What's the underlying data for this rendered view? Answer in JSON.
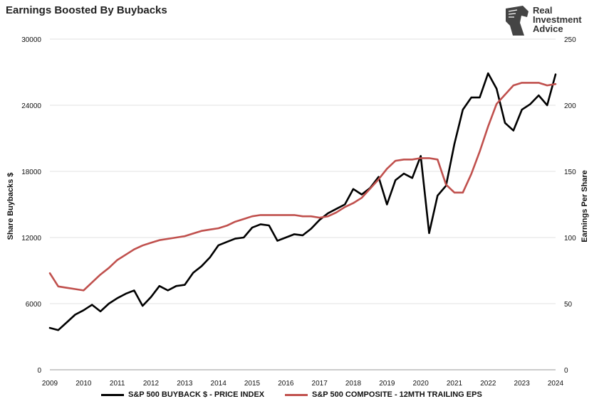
{
  "title": "Earnings Boosted By Buybacks",
  "logo": {
    "line1": "Real",
    "line2": "Investment",
    "line3": "Advice",
    "icon": "horse-head-icon"
  },
  "legend": [
    {
      "label": "S&P 500 BUYBACK $ - PRICE INDEX",
      "color": "#000000"
    },
    {
      "label": "S&P 500 COMPOSITE - 12MTH TRAILING EPS",
      "color": "#c0504d"
    }
  ],
  "chart_data": {
    "type": "line",
    "title": "Earnings Boosted By Buybacks",
    "xlabel": "",
    "ylabel_left": "Share Buybacks $",
    "ylabel_right": "Earnings Per Share",
    "xlim": [
      2009,
      2024
    ],
    "ylim_left": [
      0,
      30000
    ],
    "ylim_right": [
      0,
      250
    ],
    "x_ticks": [
      "2009",
      "2010",
      "2011",
      "2012",
      "2013",
      "2014",
      "2015",
      "2016",
      "2017",
      "2018",
      "2019",
      "2020",
      "2021",
      "2022",
      "2023",
      "2024"
    ],
    "y_ticks_left": [
      "0",
      "6000",
      "12000",
      "18000",
      "24000",
      "30000"
    ],
    "y_ticks_right": [
      "0",
      "50",
      "100",
      "150",
      "200",
      "250"
    ],
    "grid": "horizontal",
    "legend_position": "bottom",
    "series": [
      {
        "name": "S&P 500 BUYBACK $ - PRICE INDEX",
        "axis": "left",
        "color": "#000000",
        "x": [
          2009.0,
          2009.25,
          2009.5,
          2009.75,
          2010.0,
          2010.25,
          2010.5,
          2010.75,
          2011.0,
          2011.25,
          2011.5,
          2011.75,
          2012.0,
          2012.25,
          2012.5,
          2012.75,
          2013.0,
          2013.25,
          2013.5,
          2013.75,
          2014.0,
          2014.25,
          2014.5,
          2014.75,
          2015.0,
          2015.25,
          2015.5,
          2015.75,
          2016.0,
          2016.25,
          2016.5,
          2016.75,
          2017.0,
          2017.25,
          2017.5,
          2017.75,
          2018.0,
          2018.25,
          2018.5,
          2018.75,
          2019.0,
          2019.25,
          2019.5,
          2019.75,
          2020.0,
          2020.25,
          2020.5,
          2020.75,
          2021.0,
          2021.25,
          2021.5,
          2021.75,
          2022.0,
          2022.25,
          2022.5,
          2022.75,
          2023.0,
          2023.25,
          2023.5,
          2023.75,
          2024.0
        ],
        "values": [
          3800,
          3600,
          4300,
          5000,
          5400,
          5900,
          5300,
          6000,
          6500,
          6900,
          7200,
          5800,
          6600,
          7600,
          7200,
          7600,
          7700,
          8800,
          9400,
          10200,
          11300,
          11600,
          11900,
          12000,
          12900,
          13200,
          13100,
          11700,
          12000,
          12300,
          12200,
          12800,
          13600,
          14200,
          14600,
          15000,
          16400,
          15900,
          16500,
          17500,
          15000,
          17200,
          17800,
          17400,
          19400,
          12400,
          15800,
          16700,
          20500,
          23600,
          24700,
          24700,
          26900,
          25500,
          22400,
          21700,
          23600,
          24100,
          24900,
          24000,
          26800
        ]
      },
      {
        "name": "S&P 500 COMPOSITE - 12MTH TRAILING EPS",
        "axis": "right",
        "color": "#c0504d",
        "x": [
          2009.0,
          2009.25,
          2009.5,
          2009.75,
          2010.0,
          2010.25,
          2010.5,
          2010.75,
          2011.0,
          2011.25,
          2011.5,
          2011.75,
          2012.0,
          2012.25,
          2012.5,
          2012.75,
          2013.0,
          2013.25,
          2013.5,
          2013.75,
          2014.0,
          2014.25,
          2014.5,
          2014.75,
          2015.0,
          2015.25,
          2015.5,
          2015.75,
          2016.0,
          2016.25,
          2016.5,
          2016.75,
          2017.0,
          2017.25,
          2017.5,
          2017.75,
          2018.0,
          2018.25,
          2018.5,
          2018.75,
          2019.0,
          2019.25,
          2019.5,
          2019.75,
          2020.0,
          2020.25,
          2020.5,
          2020.75,
          2021.0,
          2021.25,
          2021.5,
          2021.75,
          2022.0,
          2022.25,
          2022.5,
          2022.75,
          2023.0,
          2023.25,
          2023.5,
          2023.75,
          2024.0
        ],
        "values": [
          73,
          63,
          62,
          61,
          60,
          66,
          72,
          77,
          83,
          87,
          91,
          94,
          96,
          98,
          99,
          100,
          101,
          103,
          105,
          106,
          107,
          109,
          112,
          114,
          116,
          117,
          117,
          117,
          117,
          117,
          116,
          116,
          115,
          116,
          119,
          123,
          126,
          130,
          137,
          144,
          152,
          158,
          159,
          159,
          160,
          160,
          159,
          140,
          134,
          134,
          148,
          165,
          184,
          201,
          208,
          215,
          217,
          217,
          217,
          215,
          216
        ]
      }
    ]
  }
}
